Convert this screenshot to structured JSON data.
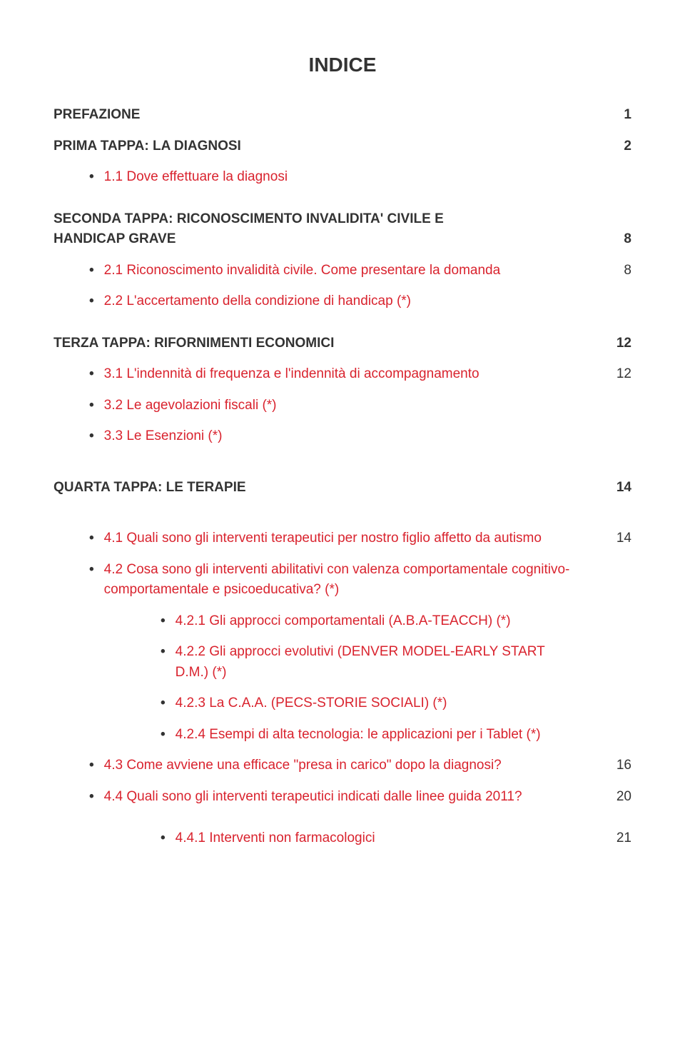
{
  "title": "INDICE",
  "colors": {
    "text": "#333333",
    "accent": "#d9232e",
    "background": "#ffffff"
  },
  "typography": {
    "body_fontsize": 19,
    "title_fontsize": 28,
    "font_family": "Arial, Helvetica, sans-serif"
  },
  "sections": {
    "prefazione": {
      "label": "PREFAZIONE",
      "page": "1"
    },
    "prima": {
      "label": "PRIMA TAPPA: LA DIAGNOSI",
      "page": "2"
    },
    "seconda": {
      "label_line1": "SECONDA TAPPA: RICONOSCIMENTO INVALIDITA' CIVILE E",
      "label_line2": "HANDICAP GRAVE",
      "page": "8"
    },
    "terza": {
      "label": "TERZA TAPPA: RIFORNIMENTI ECONOMICI",
      "page": "12"
    },
    "quarta": {
      "label": "QUARTA TAPPA: LE TERAPIE",
      "page": "14"
    }
  },
  "items": {
    "i11": {
      "text": "1.1 Dove effettuare la diagnosi",
      "page": ""
    },
    "i21": {
      "text": "2.1 Riconoscimento invalidità civile. Come presentare la domanda",
      "page": "8"
    },
    "i22": {
      "text": "2.2 L'accertamento della condizione di handicap (*)",
      "page": ""
    },
    "i31": {
      "text": "3.1 L'indennità di frequenza e l'indennità di accompagnamento",
      "page": "12"
    },
    "i32": {
      "text": "3.2 Le agevolazioni fiscali (*)",
      "page": ""
    },
    "i33": {
      "text": "3.3 Le Esenzioni (*)",
      "page": ""
    },
    "i41": {
      "text": "4.1 Quali sono gli interventi terapeutici per nostro figlio affetto da autismo",
      "page": "14"
    },
    "i42": {
      "text": "4.2 Cosa sono gli interventi abilitativi con valenza comportamentale cognitivo-comportamentale e psicoeducativa? (*)",
      "page": ""
    },
    "i421": {
      "text": "4.2.1 Gli approcci comportamentali (A.B.A-TEACCH) (*)",
      "page": ""
    },
    "i422": {
      "text": "4.2.2 Gli approcci evolutivi (DENVER MODEL-EARLY START D.M.) (*)",
      "page": ""
    },
    "i423": {
      "text": "4.2.3 La C.A.A.  (PECS-STORIE SOCIALI) (*)",
      "page": ""
    },
    "i424": {
      "text": "4.2.4 Esempi di alta tecnologia: le applicazioni per i Tablet (*)",
      "page": ""
    },
    "i43": {
      "text": "4.3 Come avviene una efficace \"presa in carico\" dopo la diagnosi?",
      "page": "16"
    },
    "i44": {
      "text": "4.4 Quali sono gli interventi terapeutici indicati dalle linee guida 2011?",
      "page": "20"
    },
    "i441": {
      "text": "4.4.1 Interventi non farmacologici",
      "page": "21"
    }
  }
}
